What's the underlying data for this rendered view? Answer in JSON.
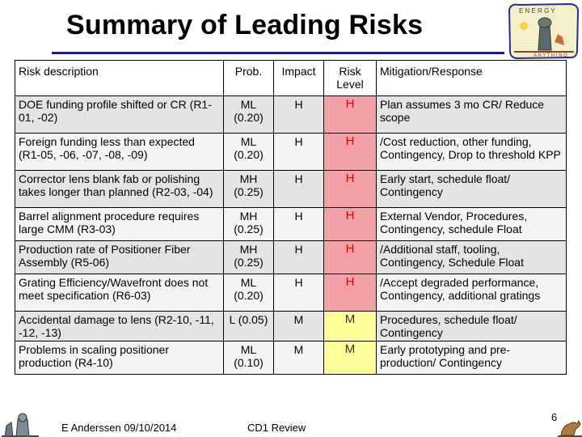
{
  "slide": {
    "title": "Summary of Leading Risks",
    "footer_author": "E Anderssen  09/10/2014",
    "footer_event": "CD1 Review",
    "page_number": "6"
  },
  "table": {
    "headers": {
      "description": "Risk description",
      "prob": "Prob.",
      "impact": "Impact",
      "level": "Risk Level",
      "mitigation": "Mitigation/Response"
    },
    "rows": [
      {
        "description": "DOE funding profile shifted or CR (R1-01, -02)",
        "prob": "ML (0.20)",
        "impact": "H",
        "level": "H",
        "mitigation": "Plan assumes 3 mo CR/ Reduce scope"
      },
      {
        "description": "Foreign funding less than expected (R1-05, -06, -07, -08, -09)",
        "prob": "ML (0.20)",
        "impact": "H",
        "level": "H",
        "mitigation": "/Cost reduction, other funding, Contingency, Drop to threshold KPP"
      },
      {
        "description": "Corrector lens blank fab or polishing takes longer than planned (R2-03, -04)",
        "prob": "MH (0.25)",
        "impact": "H",
        "level": "H",
        "mitigation": "Early start, schedule float/ Contingency"
      },
      {
        "description": "Barrel alignment procedure requires large CMM (R3-03)",
        "prob": "MH (0.25)",
        "impact": "H",
        "level": "H",
        "mitigation": "External Vendor, Procedures, Contingency, schedule Float"
      },
      {
        "description": "Production rate of Positioner Fiber Assembly (R5-06)",
        "prob": "MH (0.25)",
        "impact": "H",
        "level": "H",
        "mitigation": "/Additional staff, tooling, Contingency, Schedule Float"
      },
      {
        "description": "Grating Efficiency/Wavefront does not meet specification (R6-03)",
        "prob": "ML (0.20)",
        "impact": "H",
        "level": "H",
        "mitigation": "/Accept degraded performance, Contingency, additional gratings"
      },
      {
        "description": "Accidental damage to lens (R2-10, -11, -12, -13)",
        "prob": "L (0.05)",
        "impact": "M",
        "level": "M",
        "mitigation": "Procedures, schedule float/ Contingency"
      },
      {
        "description": "Problems in scaling positioner production (R4-10)",
        "prob": "ML (0.10)",
        "impact": "M",
        "level": "M",
        "mitigation": "Early prototyping and pre-production/ Contingency"
      }
    ]
  },
  "colors": {
    "title_rule": "#1a1aa6",
    "high_level_bg": "#f4a0a8",
    "high_level_text": "#e00000",
    "medium_level_bg": "#ffff99"
  },
  "icons": [
    "energy-logo-icon",
    "telescope-drawing-icon",
    "kangaroo-drawing-icon"
  ]
}
